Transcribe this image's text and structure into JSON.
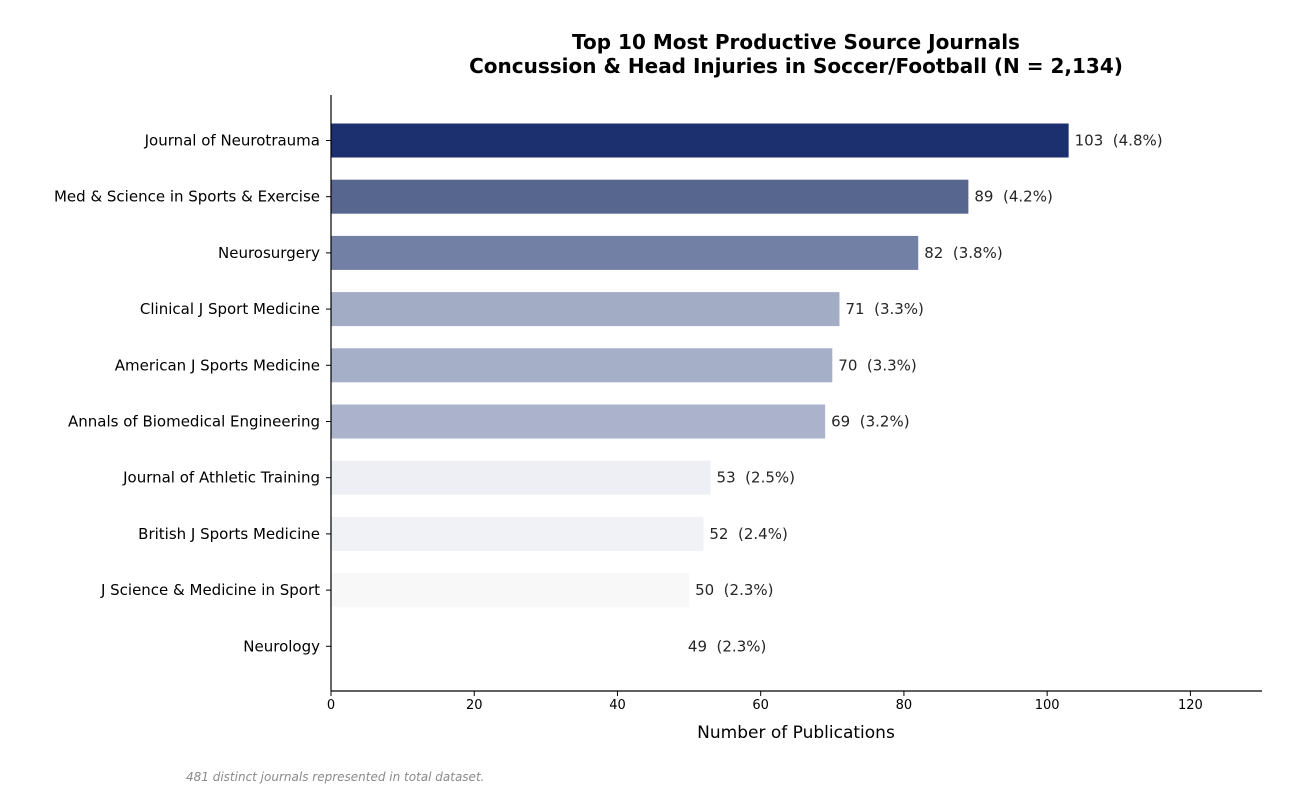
{
  "chart_data": {
    "type": "bar",
    "orientation": "horizontal",
    "title": [
      "Top 10 Most Productive Source Journals",
      "Concussion & Head Injuries in Soccer/Football (N = 2,134)"
    ],
    "xlabel": "Number of Publications",
    "ylabel": "",
    "xlim": [
      0,
      130
    ],
    "xticks": [
      0,
      20,
      40,
      60,
      80,
      100,
      120
    ],
    "grid": false,
    "categories": [
      "Journal of Neurotrauma",
      "Med & Science in Sports & Exercise",
      "Neurosurgery",
      "Clinical J Sport Medicine",
      "American J Sports Medicine",
      "Annals of Biomedical Engineering",
      "Journal of Athletic Training",
      "British J Sports Medicine",
      "J Science & Medicine in Sport",
      "Neurology"
    ],
    "values": [
      103,
      89,
      82,
      71,
      70,
      69,
      53,
      52,
      50,
      49
    ],
    "data_labels": [
      "103  (4.8%)",
      "89  (4.2%)",
      "82  (3.8%)",
      "71  (3.3%)",
      "70  (3.3%)",
      "69  (3.2%)",
      "53  (2.5%)",
      "52  (2.4%)",
      "50  (2.3%)",
      "49  (2.3%)"
    ],
    "colors": [
      "#1c2f6e",
      "#57668f",
      "#7280a5",
      "#a2acc5",
      "#a6afc8",
      "#abb3cc",
      "#eeeff5",
      "#f1f2f6",
      "#f8f8f8",
      "#ffffff"
    ],
    "footnote": "481 distinct journals represented in total dataset."
  }
}
